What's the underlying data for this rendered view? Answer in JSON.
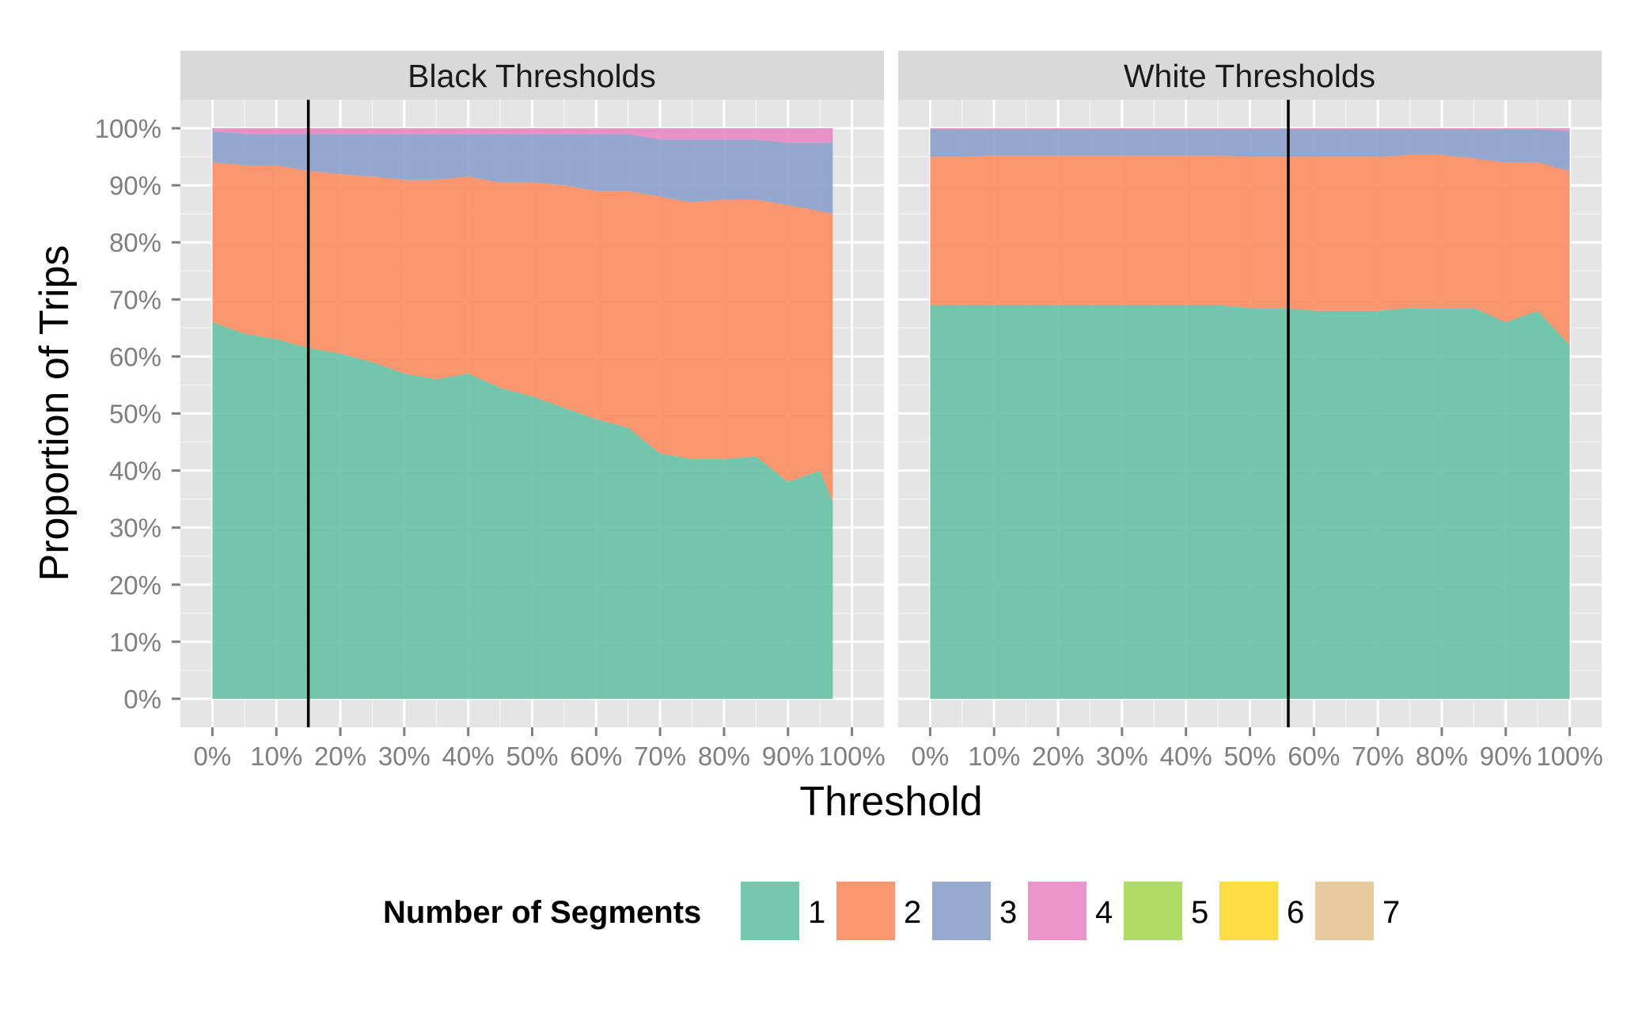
{
  "chart_data": {
    "type": "area",
    "stacked": true,
    "normalized": true,
    "xlabel": "Threshold",
    "ylabel": "Proportion of Trips",
    "xlim": [
      -0.05,
      1.05
    ],
    "ylim": [
      -0.05,
      1.05
    ],
    "grid": true,
    "legend_position": "bottom",
    "legend_title": "Number of Segments",
    "legend_entries": [
      {
        "label": "1",
        "color": "#66C2A5"
      },
      {
        "label": "2",
        "color": "#FC8D62"
      },
      {
        "label": "3",
        "color": "#8DA0CB"
      },
      {
        "label": "4",
        "color": "#E78AC3"
      },
      {
        "label": "5",
        "color": "#A6D854"
      },
      {
        "label": "6",
        "color": "#FFD92F"
      },
      {
        "label": "7",
        "color": "#E5C494"
      }
    ],
    "x_ticks": [
      0,
      0.1,
      0.2,
      0.3,
      0.4,
      0.5,
      0.6,
      0.7,
      0.8,
      0.9,
      1.0
    ],
    "x_tick_labels": [
      "0%",
      "10%",
      "20%",
      "30%",
      "40%",
      "50%",
      "60%",
      "70%",
      "80%",
      "90%",
      "100%"
    ],
    "y_ticks": [
      0,
      0.1,
      0.2,
      0.3,
      0.4,
      0.5,
      0.6,
      0.7,
      0.8,
      0.9,
      1.0
    ],
    "y_tick_labels": [
      "0%",
      "10%",
      "20%",
      "30%",
      "40%",
      "50%",
      "60%",
      "70%",
      "80%",
      "90%",
      "100%"
    ],
    "panels": [
      {
        "title": "Black Thresholds",
        "vline": 0.15,
        "x": [
          0.0,
          0.05,
          0.1,
          0.15,
          0.2,
          0.25,
          0.3,
          0.35,
          0.4,
          0.45,
          0.5,
          0.55,
          0.6,
          0.65,
          0.7,
          0.75,
          0.8,
          0.85,
          0.9,
          0.95,
          0.97
        ],
        "series": [
          {
            "name": "1",
            "values": [
              0.66,
              0.64,
              0.63,
              0.615,
              0.605,
              0.59,
              0.57,
              0.56,
              0.57,
              0.545,
              0.53,
              0.51,
              0.49,
              0.475,
              0.43,
              0.42,
              0.42,
              0.425,
              0.38,
              0.4,
              0.345
            ]
          },
          {
            "name": "2",
            "values": [
              0.28,
              0.295,
              0.305,
              0.31,
              0.315,
              0.325,
              0.34,
              0.35,
              0.345,
              0.36,
              0.375,
              0.39,
              0.4,
              0.415,
              0.45,
              0.45,
              0.455,
              0.45,
              0.485,
              0.455,
              0.505
            ]
          },
          {
            "name": "3",
            "values": [
              0.055,
              0.055,
              0.055,
              0.065,
              0.07,
              0.075,
              0.08,
              0.08,
              0.075,
              0.085,
              0.085,
              0.09,
              0.1,
              0.1,
              0.1,
              0.11,
              0.105,
              0.105,
              0.11,
              0.12,
              0.125
            ]
          },
          {
            "name": "4",
            "values": [
              0.005,
              0.01,
              0.01,
              0.01,
              0.01,
              0.01,
              0.01,
              0.01,
              0.01,
              0.01,
              0.01,
              0.01,
              0.01,
              0.01,
              0.02,
              0.02,
              0.02,
              0.02,
              0.025,
              0.025,
              0.025
            ]
          }
        ]
      },
      {
        "title": "White Thresholds",
        "vline": 0.56,
        "x": [
          0.0,
          0.05,
          0.1,
          0.15,
          0.2,
          0.25,
          0.3,
          0.35,
          0.4,
          0.45,
          0.5,
          0.55,
          0.6,
          0.65,
          0.7,
          0.75,
          0.8,
          0.85,
          0.9,
          0.95,
          1.0
        ],
        "series": [
          {
            "name": "1",
            "values": [
              0.69,
              0.69,
              0.69,
              0.69,
              0.69,
              0.69,
              0.69,
              0.69,
              0.69,
              0.69,
              0.685,
              0.685,
              0.68,
              0.68,
              0.68,
              0.685,
              0.685,
              0.685,
              0.66,
              0.68,
              0.62
            ]
          },
          {
            "name": "2",
            "values": [
              0.26,
              0.26,
              0.262,
              0.262,
              0.262,
              0.262,
              0.262,
              0.262,
              0.262,
              0.262,
              0.265,
              0.265,
              0.27,
              0.27,
              0.27,
              0.268,
              0.268,
              0.262,
              0.28,
              0.26,
              0.305
            ]
          },
          {
            "name": "3",
            "values": [
              0.049,
              0.049,
              0.047,
              0.047,
              0.047,
              0.047,
              0.047,
              0.047,
              0.047,
              0.047,
              0.049,
              0.049,
              0.049,
              0.049,
              0.049,
              0.046,
              0.046,
              0.052,
              0.058,
              0.058,
              0.07
            ]
          },
          {
            "name": "4",
            "values": [
              0.001,
              0.001,
              0.001,
              0.001,
              0.001,
              0.001,
              0.001,
              0.001,
              0.001,
              0.001,
              0.001,
              0.001,
              0.001,
              0.001,
              0.001,
              0.001,
              0.001,
              0.001,
              0.002,
              0.002,
              0.005
            ]
          }
        ]
      }
    ]
  }
}
